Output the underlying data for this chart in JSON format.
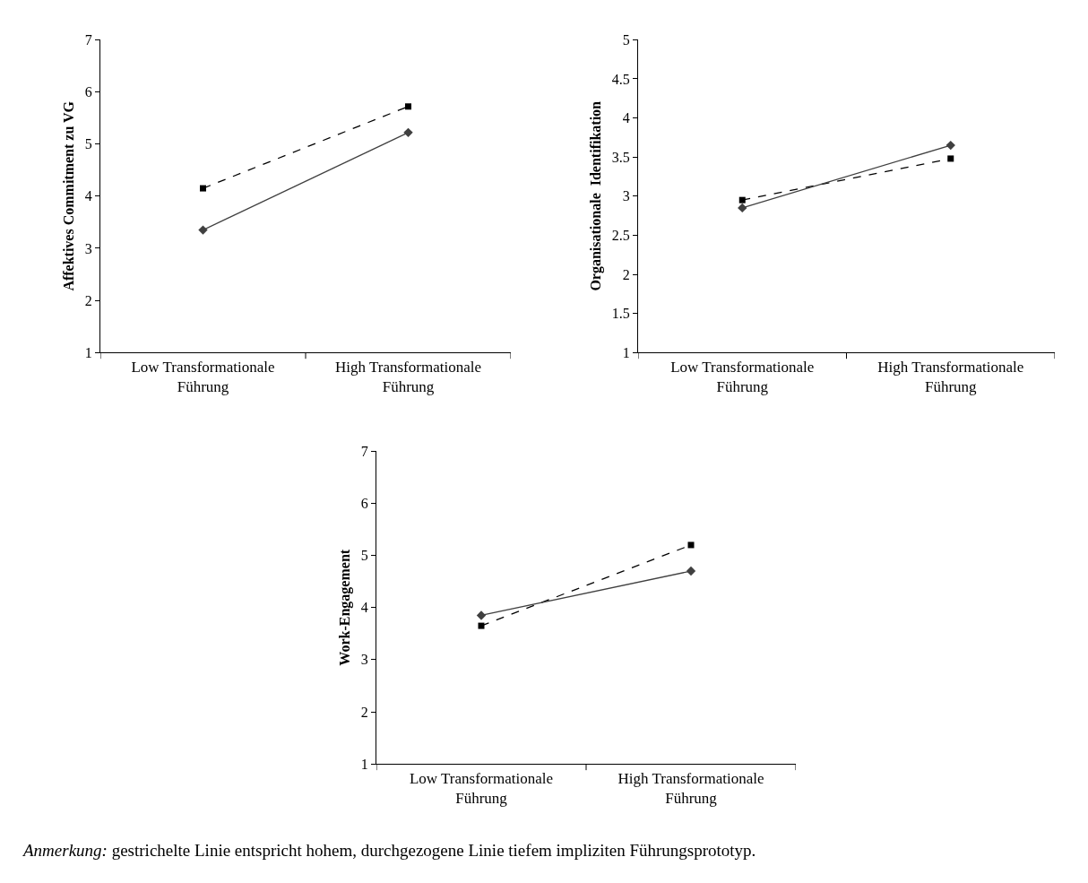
{
  "chart_data": [
    {
      "type": "line",
      "ylabel": "Affektives Commitment zu VG",
      "categories": [
        "Low Transformationale Führung",
        "High Transformationale Führung"
      ],
      "ylim": [
        1,
        7
      ],
      "yticks": [
        1,
        2,
        3,
        4,
        5,
        6,
        7
      ],
      "series": [
        {
          "color": "#000000",
          "values": [
            4.15,
            5.72
          ],
          "marker": "square",
          "line_style": "dashed"
        },
        {
          "color": "#404040",
          "values": [
            3.35,
            5.22
          ],
          "marker": "diamond",
          "line_style": "solid"
        }
      ]
    },
    {
      "type": "line",
      "ylabel": "Organisationale  Identifikation",
      "categories": [
        "Low Transformationale Führung",
        "High Transformationale Führung"
      ],
      "ylim": [
        1,
        5
      ],
      "yticks": [
        1,
        1.5,
        2,
        2.5,
        3,
        3.5,
        4,
        4.5,
        5
      ],
      "series": [
        {
          "color": "#000000",
          "values": [
            2.95,
            3.48
          ],
          "marker": "square",
          "line_style": "dashed"
        },
        {
          "color": "#404040",
          "values": [
            2.85,
            3.65
          ],
          "marker": "diamond",
          "line_style": "solid"
        }
      ]
    },
    {
      "type": "line",
      "ylabel": "Work-Engagement",
      "categories": [
        "Low Transformationale Führung",
        "High Transformationale Führung"
      ],
      "ylim": [
        1,
        7
      ],
      "yticks": [
        1,
        2,
        3,
        4,
        5,
        6,
        7
      ],
      "annotations": [
        "Anmerkung: gestrichelte Linie entspricht hohem, durchgezogene Linie tiefem impliziten Führungsprototyp."
      ],
      "series": [
        {
          "color": "#000000",
          "values": [
            3.65,
            5.2
          ],
          "marker": "square",
          "line_style": "dashed"
        },
        {
          "color": "#404040",
          "values": [
            3.85,
            4.7
          ],
          "marker": "diamond",
          "line_style": "solid"
        }
      ]
    }
  ]
}
